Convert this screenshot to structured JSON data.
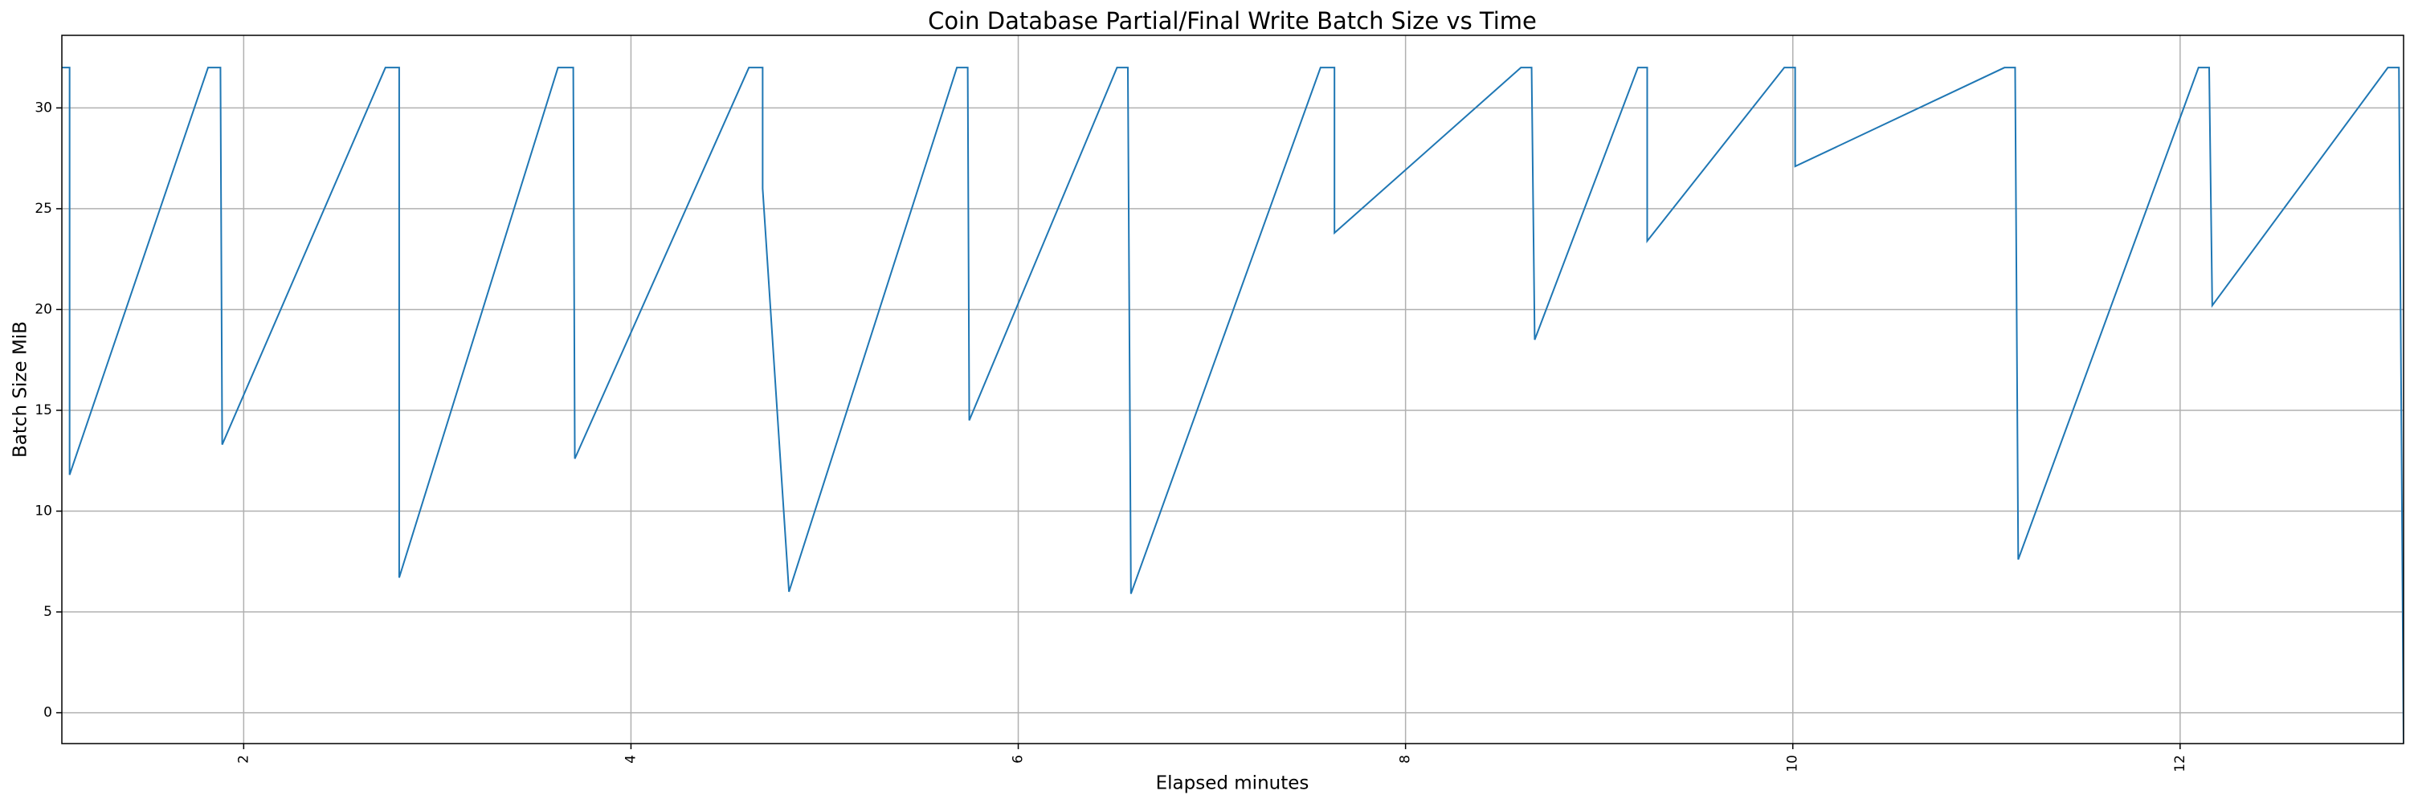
{
  "chart_data": {
    "type": "line",
    "title": "Coin Database Partial/Final Write Batch Size vs Time",
    "xlabel": "Elapsed minutes",
    "ylabel": "Batch Size MiB",
    "x": [
      1.061,
      1.101,
      1.101,
      1.816,
      1.88,
      1.889,
      2.732,
      2.803,
      2.803,
      3.623,
      3.702,
      3.71,
      4.609,
      4.68,
      4.68,
      4.816,
      5.683,
      5.739,
      5.747,
      6.51,
      6.566,
      6.582,
      7.561,
      7.633,
      7.633,
      8.596,
      8.651,
      8.667,
      9.2,
      9.248,
      9.248,
      9.956,
      10.012,
      10.012,
      11.093,
      11.148,
      11.164,
      12.095,
      12.15,
      12.166,
      13.073,
      13.13,
      13.154
    ],
    "series": [
      {
        "name": "Batch Size",
        "color": "#1f77b4",
        "values": [
          32,
          32,
          11.8,
          32,
          32,
          13.3,
          32,
          32,
          6.7,
          32,
          32,
          12.6,
          32,
          32,
          26,
          6,
          32,
          32,
          14.5,
          32,
          32,
          5.9,
          32,
          32,
          23.8,
          32,
          32,
          18.5,
          32,
          32,
          23.4,
          32,
          32,
          27.1,
          32,
          32,
          7.6,
          32,
          32,
          20.2,
          32,
          32,
          -1.5
        ]
      }
    ],
    "xlim": [
      1.061,
      13.154
    ],
    "ylim": [
      -1.53,
      33.6
    ],
    "xticks": [
      2,
      4,
      6,
      8,
      10,
      12
    ],
    "yticks": [
      0,
      5,
      10,
      15,
      20,
      25,
      30
    ],
    "grid": true
  }
}
